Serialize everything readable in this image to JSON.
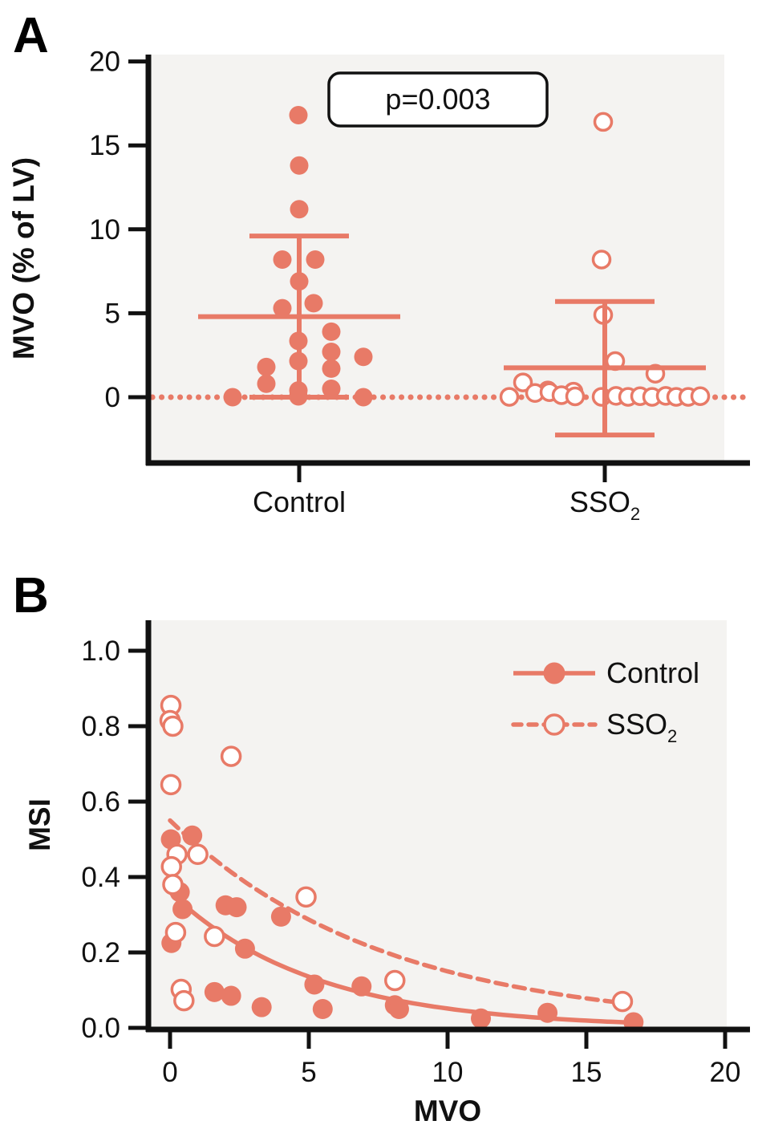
{
  "figure": {
    "panel_a_label": "A",
    "panel_b_label": "B",
    "colors": {
      "accent": "#E87A67",
      "panel_bg": "#F4F3F1",
      "axis": "#111111",
      "open_marker_fill": "#FFFFFF",
      "annotation_bg": "#FFFFFF",
      "annotation_border": "#111111"
    }
  },
  "chart_data": [
    {
      "id": "panel-A",
      "type": "scatter",
      "subtype": "grouped-dot-plot-with-mean-sd",
      "title": "",
      "xlabel": "",
      "ylabel": "MVO (% of LV)",
      "yticks": [
        0,
        5,
        10,
        15,
        20
      ],
      "ylim": [
        -3.9,
        20.4
      ],
      "grid": false,
      "annotation": "p=0.003",
      "zero_line": {
        "y": 0,
        "style": "dotted"
      },
      "groups": [
        {
          "label": "Control",
          "label_subscript": "",
          "marker": "filled",
          "mean": 4.8,
          "sd_upper": 9.6,
          "sd_lower": 0.0,
          "points": [
            [
              -83,
              0
            ],
            [
              -1,
              0.05
            ],
            [
              80,
              0
            ],
            [
              -1,
              0.4
            ],
            [
              40,
              0.5
            ],
            [
              -41,
              0.8
            ],
            [
              40,
              1.7
            ],
            [
              -41,
              1.8
            ],
            [
              -1,
              2.15
            ],
            [
              80,
              2.4
            ],
            [
              40,
              2.7
            ],
            [
              -1,
              3.35
            ],
            [
              40,
              3.9
            ],
            [
              -21,
              5.3
            ],
            [
              18,
              5.6
            ],
            [
              0,
              6.9
            ],
            [
              -21,
              8.2
            ],
            [
              20,
              8.2
            ],
            [
              0,
              11.2
            ],
            [
              0,
              13.8
            ],
            [
              -1,
              16.8
            ]
          ]
        },
        {
          "label": "SSO",
          "label_subscript": "2",
          "marker": "open",
          "mean": 1.75,
          "sd_upper": 5.7,
          "sd_lower": -2.25,
          "points": [
            [
              -2,
              16.4
            ],
            [
              -4,
              8.2
            ],
            [
              -2,
              4.9
            ],
            [
              13,
              2.15
            ],
            [
              63,
              1.4
            ],
            [
              -102,
              0.88
            ],
            [
              -71,
              0.4
            ],
            [
              -39,
              0.33
            ],
            [
              -119,
              0.02
            ],
            [
              -87,
              0.25
            ],
            [
              -69,
              0.3
            ],
            [
              -54,
              0.12
            ],
            [
              -37,
              0.05
            ],
            [
              -4,
              0.02
            ],
            [
              14,
              0.08
            ],
            [
              29,
              0.02
            ],
            [
              44,
              0.06
            ],
            [
              59,
              0.02
            ],
            [
              76,
              0.08
            ],
            [
              89,
              0.02
            ],
            [
              104,
              0.02
            ],
            [
              119,
              0.06
            ]
          ]
        }
      ]
    },
    {
      "id": "panel-B",
      "type": "scatter",
      "subtype": "xy-scatter-with-exponential-fits",
      "title": "",
      "xlabel": "MVO",
      "ylabel": "MSI",
      "xticks": [
        0,
        5,
        10,
        15,
        20
      ],
      "yticks": [
        0.0,
        0.2,
        0.4,
        0.6,
        0.8,
        1.0
      ],
      "xlim": [
        0,
        20
      ],
      "ylim": [
        0,
        1.05
      ],
      "grid": false,
      "legend": {
        "position": "top-right",
        "entries": [
          {
            "label": "Control",
            "label_subscript": "",
            "marker": "filled",
            "line": "solid"
          },
          {
            "label": "SSO",
            "label_subscript": "2",
            "marker": "open",
            "line": "dashed"
          }
        ]
      },
      "series": [
        {
          "name": "Control",
          "marker": "filled",
          "line": "solid",
          "fit": {
            "model": "exponential_decay",
            "y0": 0.36,
            "k": 0.195,
            "x_end": 16.8
          },
          "points": [
            [
              0.03,
              0.5
            ],
            [
              0.8,
              0.51
            ],
            [
              0.35,
              0.36
            ],
            [
              0.45,
              0.315
            ],
            [
              0.05,
              0.225
            ],
            [
              2.0,
              0.325
            ],
            [
              2.4,
              0.32
            ],
            [
              4.0,
              0.295
            ],
            [
              2.7,
              0.21
            ],
            [
              1.6,
              0.095
            ],
            [
              2.2,
              0.085
            ],
            [
              3.3,
              0.055
            ],
            [
              5.5,
              0.05
            ],
            [
              5.2,
              0.115
            ],
            [
              6.9,
              0.11
            ],
            [
              8.1,
              0.06
            ],
            [
              8.25,
              0.05
            ],
            [
              11.2,
              0.025
            ],
            [
              13.6,
              0.04
            ],
            [
              16.7,
              0.015
            ]
          ]
        },
        {
          "name": "SSO2",
          "marker": "open",
          "line": "dashed",
          "fit": {
            "model": "exponential_decay",
            "y0": 0.55,
            "k": 0.13,
            "x_end": 16.4
          },
          "points": [
            [
              0.03,
              0.855
            ],
            [
              0.0,
              0.815
            ],
            [
              0.1,
              0.8
            ],
            [
              2.2,
              0.72
            ],
            [
              0.03,
              0.645
            ],
            [
              0.25,
              0.46
            ],
            [
              1.0,
              0.46
            ],
            [
              0.05,
              0.4275
            ],
            [
              0.1,
              0.38
            ],
            [
              0.2,
              0.253
            ],
            [
              1.6,
              0.2425
            ],
            [
              4.9,
              0.347
            ],
            [
              0.4,
              0.102
            ],
            [
              0.5,
              0.072
            ],
            [
              8.1,
              0.1255
            ],
            [
              16.3,
              0.07
            ]
          ]
        }
      ]
    }
  ]
}
